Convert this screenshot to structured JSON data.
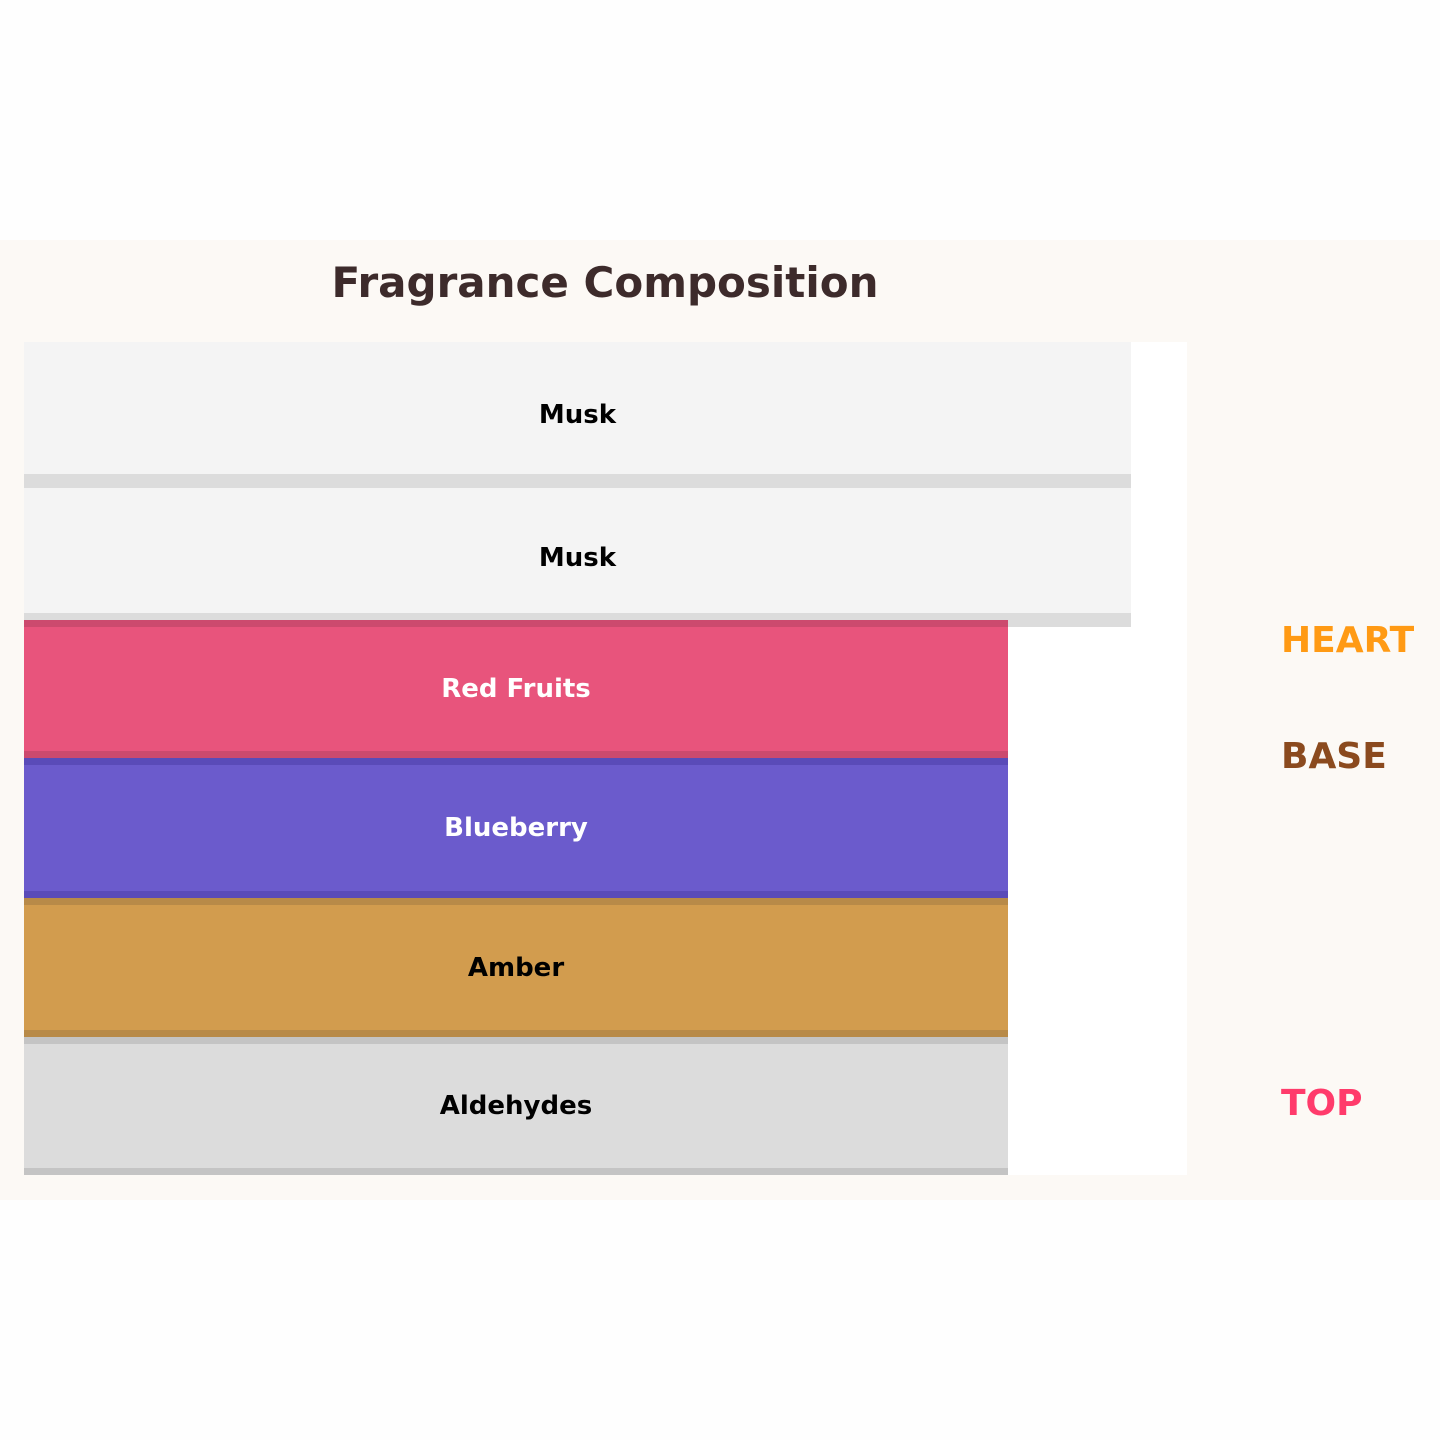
{
  "title": "Fragrance Composition",
  "layers": [
    {
      "label": "Musk",
      "fill": "#f4f4f4",
      "band": "#dcdcdc",
      "text_color": "#000000"
    },
    {
      "label": "Musk",
      "fill": "#f4f4f4",
      "band": "#dcdcdc",
      "text_color": "#000000"
    },
    {
      "label": "Red Fruits",
      "fill": "#e8547c",
      "band": "#cc4a6e",
      "text_color": "#ffffff"
    },
    {
      "label": "Blueberry",
      "fill": "#6b5bcc",
      "band": "#5a4bb8",
      "text_color": "#ffffff"
    },
    {
      "label": "Amber",
      "fill": "#d29c4e",
      "band": "#b88a48",
      "text_color": "#000000"
    },
    {
      "label": "Aldehydes",
      "fill": "#dcdcdc",
      "band": "#c4c4c4",
      "text_color": "#000000"
    }
  ],
  "tiers": [
    {
      "label": "HEART",
      "color": "#ff9a14"
    },
    {
      "label": "BASE",
      "color": "#8b4a1e"
    },
    {
      "label": "TOP",
      "color": "#ff3b6b"
    }
  ]
}
